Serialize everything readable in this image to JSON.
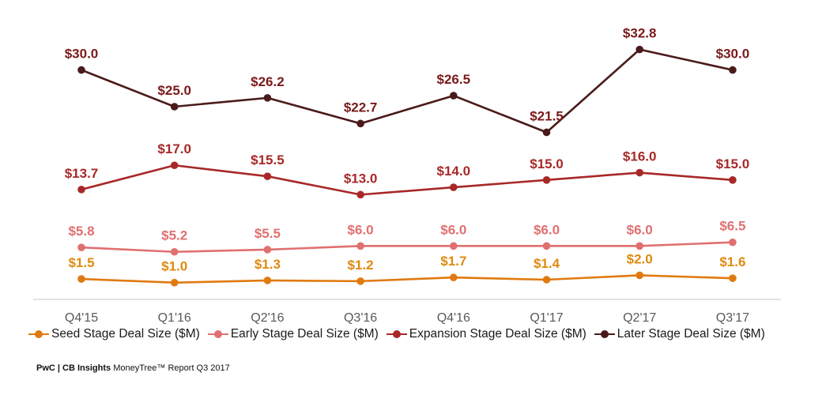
{
  "chart_data": {
    "type": "line",
    "categories": [
      "Q4'15",
      "Q1'16",
      "Q2'16",
      "Q3'16",
      "Q4'16",
      "Q1'17",
      "Q2'17",
      "Q3'17"
    ],
    "series": [
      {
        "key": "later",
        "name": "Later Stage Deal Size ($M)",
        "color": "#4a1a1a",
        "values": [
          30.0,
          25.0,
          26.2,
          22.7,
          26.5,
          21.5,
          32.8,
          30.0
        ],
        "labels": [
          "$30.0",
          "$25.0",
          "$26.2",
          "$22.7",
          "$26.5",
          "$21.5",
          "$32.8",
          "$30.0"
        ]
      },
      {
        "key": "expansion",
        "name": "Expansion Stage Deal Size ($M)",
        "color": "#a82828",
        "values": [
          13.7,
          17.0,
          15.5,
          13.0,
          14.0,
          15.0,
          16.0,
          15.0
        ],
        "labels": [
          "$13.7",
          "$17.0",
          "$15.5",
          "$13.0",
          "$14.0",
          "$15.0",
          "$16.0",
          "$15.0"
        ]
      },
      {
        "key": "early",
        "name": "Early Stage Deal Size ($M)",
        "color": "#e07070",
        "values": [
          5.8,
          5.2,
          5.5,
          6.0,
          6.0,
          6.0,
          6.0,
          6.5
        ],
        "labels": [
          "$5.8",
          "$5.2",
          "$5.5",
          "$6.0",
          "$6.0",
          "$6.0",
          "$6.0",
          "$6.5"
        ]
      },
      {
        "key": "seed",
        "name": "Seed Stage Deal Size ($M)",
        "color": "#e07a10",
        "values": [
          1.5,
          1.0,
          1.3,
          1.2,
          1.7,
          1.4,
          2.0,
          1.6
        ],
        "labels": [
          "$1.5",
          "$1.0",
          "$1.3",
          "$1.2",
          "$1.7",
          "$1.4",
          "$2.0",
          "$1.6"
        ]
      }
    ],
    "legend_order": [
      "seed",
      "early",
      "expansion",
      "later"
    ],
    "legend_position": "bottom",
    "grid": false,
    "axis_line_color": "#d9d9d9",
    "label_colors": {
      "later": "#7a1a1a",
      "expansion": "#a82828",
      "early": "#e07070",
      "seed": "#e08a10"
    }
  },
  "footer": {
    "brand": "PwC | CB Insights",
    "text": " MoneyTree™ Report Q3 2017"
  }
}
